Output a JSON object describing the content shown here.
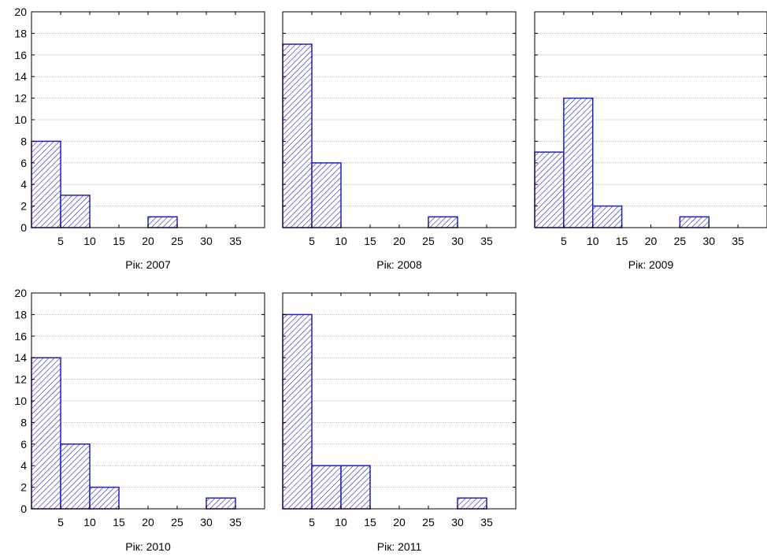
{
  "colors": {
    "bar_stroke": "#1f1fbf",
    "bar_hatch": "#1f1fbf",
    "bar_fill": "#ffffff",
    "axes": "#000000",
    "grid": "#bdbdbd"
  },
  "chart_data": [
    {
      "type": "bar",
      "title": "Рік: 2007",
      "bins": [
        [
          0,
          5
        ],
        [
          5,
          10
        ],
        [
          10,
          15
        ],
        [
          15,
          20
        ],
        [
          20,
          25
        ],
        [
          25,
          30
        ],
        [
          30,
          35
        ],
        [
          35,
          40
        ]
      ],
      "values": [
        8,
        3,
        0,
        0,
        1,
        0,
        0,
        0
      ],
      "xticks": [
        5,
        10,
        15,
        20,
        25,
        30,
        35
      ],
      "yticks": [
        0,
        2,
        4,
        6,
        8,
        10,
        12,
        14,
        16,
        18,
        20
      ],
      "xlim": [
        0,
        40
      ],
      "ylim": [
        0,
        20
      ],
      "grid": true,
      "hatch": true
    },
    {
      "type": "bar",
      "title": "Рік: 2008",
      "bins": [
        [
          0,
          5
        ],
        [
          5,
          10
        ],
        [
          10,
          15
        ],
        [
          15,
          20
        ],
        [
          20,
          25
        ],
        [
          25,
          30
        ],
        [
          30,
          35
        ],
        [
          35,
          40
        ]
      ],
      "values": [
        17,
        6,
        0,
        0,
        0,
        1,
        0,
        0
      ],
      "xticks": [
        5,
        10,
        15,
        20,
        25,
        30,
        35
      ],
      "yticks": [
        0,
        2,
        4,
        6,
        8,
        10,
        12,
        14,
        16,
        18,
        20
      ],
      "xlim": [
        0,
        40
      ],
      "ylim": [
        0,
        20
      ],
      "grid": true,
      "hatch": true
    },
    {
      "type": "bar",
      "title": "Рік: 2009",
      "bins": [
        [
          0,
          5
        ],
        [
          5,
          10
        ],
        [
          10,
          15
        ],
        [
          15,
          20
        ],
        [
          20,
          25
        ],
        [
          25,
          30
        ],
        [
          30,
          35
        ],
        [
          35,
          40
        ]
      ],
      "values": [
        7,
        12,
        2,
        0,
        0,
        1,
        0,
        0
      ],
      "xticks": [
        5,
        10,
        15,
        20,
        25,
        30,
        35
      ],
      "yticks": [
        0,
        2,
        4,
        6,
        8,
        10,
        12,
        14,
        16,
        18,
        20
      ],
      "xlim": [
        0,
        40
      ],
      "ylim": [
        0,
        20
      ],
      "grid": true,
      "hatch": true
    },
    {
      "type": "bar",
      "title": "Рік: 2010",
      "bins": [
        [
          0,
          5
        ],
        [
          5,
          10
        ],
        [
          10,
          15
        ],
        [
          15,
          20
        ],
        [
          20,
          25
        ],
        [
          25,
          30
        ],
        [
          30,
          35
        ],
        [
          35,
          40
        ]
      ],
      "values": [
        14,
        6,
        2,
        0,
        0,
        0,
        1,
        0
      ],
      "xticks": [
        5,
        10,
        15,
        20,
        25,
        30,
        35
      ],
      "yticks": [
        0,
        2,
        4,
        6,
        8,
        10,
        12,
        14,
        16,
        18,
        20
      ],
      "xlim": [
        0,
        40
      ],
      "ylim": [
        0,
        20
      ],
      "grid": true,
      "hatch": true
    },
    {
      "type": "bar",
      "title": "Рік: 2011",
      "bins": [
        [
          0,
          5
        ],
        [
          5,
          10
        ],
        [
          10,
          15
        ],
        [
          15,
          20
        ],
        [
          20,
          25
        ],
        [
          25,
          30
        ],
        [
          30,
          35
        ],
        [
          35,
          40
        ]
      ],
      "values": [
        18,
        4,
        4,
        0,
        0,
        0,
        1,
        0
      ],
      "xticks": [
        5,
        10,
        15,
        20,
        25,
        30,
        35
      ],
      "yticks": [
        0,
        2,
        4,
        6,
        8,
        10,
        12,
        14,
        16,
        18,
        20
      ],
      "xlim": [
        0,
        40
      ],
      "ylim": [
        0,
        20
      ],
      "grid": true,
      "hatch": true
    }
  ]
}
